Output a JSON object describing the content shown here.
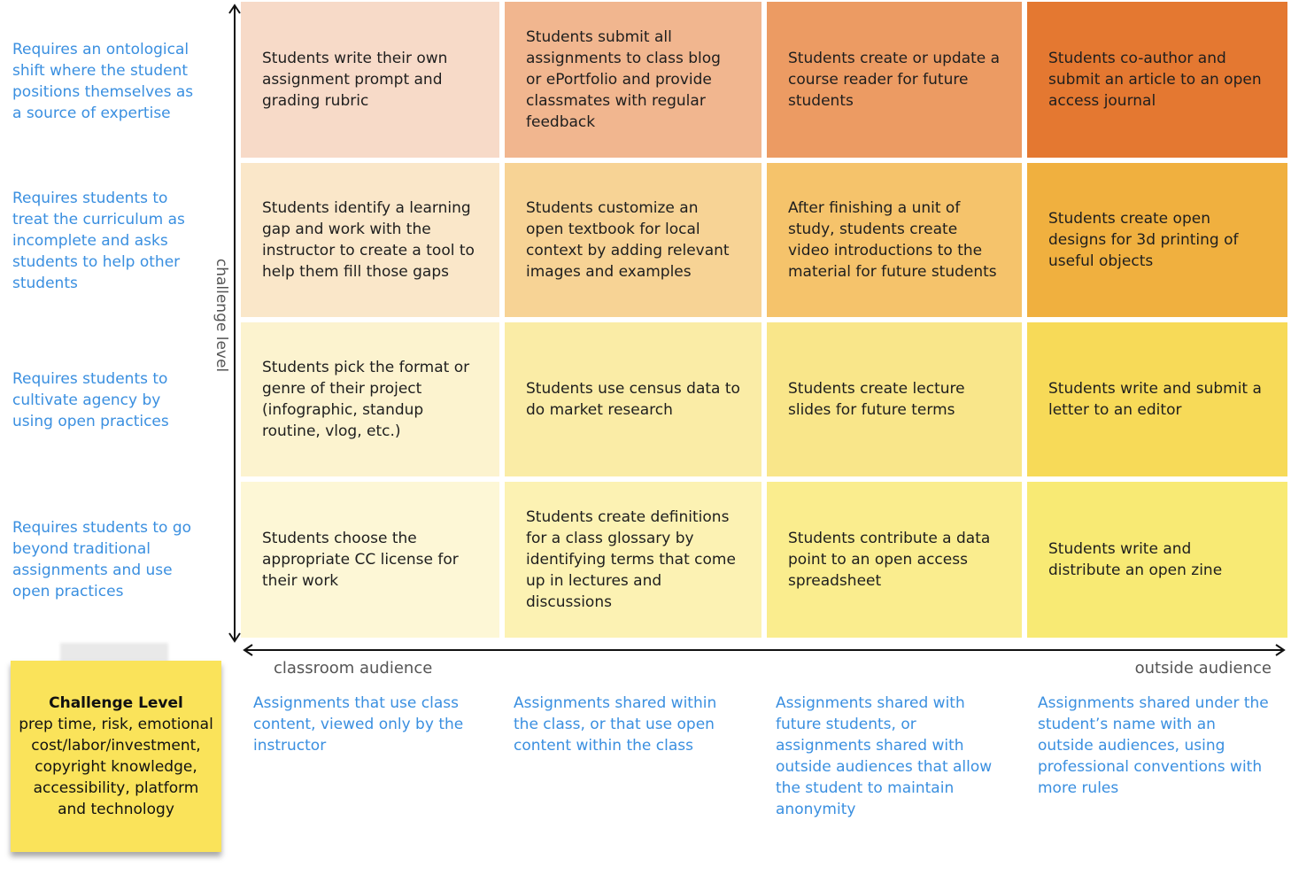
{
  "row_labels": [
    "Requires an ontological shift where the student positions themselves as a source of expertise",
    "Requires students to treat the curriculum as incomplete and asks students to help other students",
    "Requires students to cultivate agency by using open practices",
    "Requires students to go beyond traditional assignments and use open practices"
  ],
  "cells": [
    [
      "Students write their own assignment prompt and grading rubric",
      "Students submit all assignments to class blog or ePortfolio and provide classmates with regular feedback",
      "Students create or update a course reader for future students",
      "Students co-author and submit an article to an open access journal"
    ],
    [
      "Students identify a learning gap and work with the instructor to create a tool to help them fill those gaps",
      "Students customize an open textbook for local context by adding  relevant images and examples",
      "After finishing a unit of study, students create video introductions to the material for future students",
      "Students create open designs for 3d printing of useful objects"
    ],
    [
      "Students pick the format or genre of their project (infographic, standup routine, vlog, etc.)",
      "Students use census data to do market research",
      "Students create lecture slides for future terms",
      "Students write and submit a letter to an editor"
    ],
    [
      "Students choose the appropriate CC license for their work",
      "Students create definitions for a class glossary by identifying terms that come up in lectures and discussions",
      "Students contribute a data point to an open access spreadsheet",
      "Students write and distribute an open zine"
    ]
  ],
  "cell_colors": [
    [
      "#f7dac8",
      "#f1b68f",
      "#ec9b63",
      "#e47831"
    ],
    [
      "#fae7c9",
      "#f7d395",
      "#f5c36b",
      "#f0b03f"
    ],
    [
      "#fcf3cf",
      "#faeca6",
      "#f9e68a",
      "#f7da58"
    ],
    [
      "#fdf7d6",
      "#fcf2b3",
      "#faed8e",
      "#f8ea74"
    ]
  ],
  "axis": {
    "x_left": "classroom audience",
    "x_right": "outside audience",
    "y": "challenge level"
  },
  "col_labels": [
    "Assignments that use class content, viewed only by the instructor",
    "Assignments shared within the class, or that use open content within the class",
    "Assignments shared with future students, or assignments shared with outside audiences that allow the student to maintain anonymity",
    "Assignments shared under the student’s name with an outside audiences, using professional conventions with more rules"
  ],
  "sticky": {
    "title": "Challenge Level",
    "body": "prep time, risk, emotional cost/labor/investment, copyright knowledge, accessibility, platform and technology"
  },
  "label_color": "#3a8fe0"
}
